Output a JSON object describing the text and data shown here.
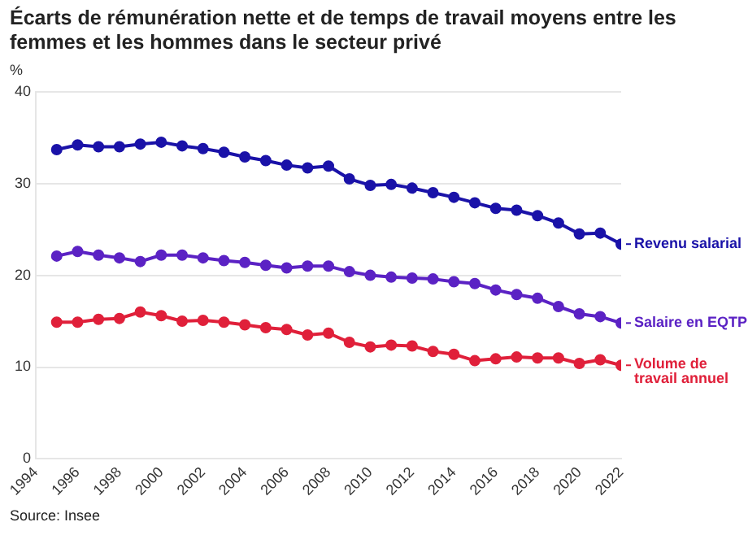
{
  "chart_data": {
    "type": "line",
    "title": "Écarts de rémunération nette et de temps de travail moyens entre les femmes et les hommes dans le secteur privé",
    "ylabel": "%",
    "x": [
      1995,
      1996,
      1997,
      1998,
      1999,
      2000,
      2001,
      2002,
      2003,
      2004,
      2005,
      2006,
      2007,
      2008,
      2009,
      2010,
      2011,
      2012,
      2013,
      2014,
      2015,
      2016,
      2017,
      2018,
      2019,
      2020,
      2021,
      2022
    ],
    "series": [
      {
        "name": "Revenu salarial",
        "color": "#1a12a8",
        "values": [
          33.7,
          34.2,
          34.0,
          34.0,
          34.3,
          34.5,
          34.1,
          33.8,
          33.4,
          32.9,
          32.5,
          32.0,
          31.7,
          31.9,
          30.5,
          29.8,
          29.9,
          29.5,
          29.0,
          28.5,
          27.9,
          27.3,
          27.1,
          26.5,
          25.7,
          24.5,
          24.6,
          23.4
        ]
      },
      {
        "name": "Salaire en EQTP",
        "color": "#5b22c4",
        "values": [
          22.1,
          22.6,
          22.2,
          21.9,
          21.5,
          22.2,
          22.2,
          21.9,
          21.6,
          21.4,
          21.1,
          20.8,
          21.0,
          21.0,
          20.4,
          20.0,
          19.8,
          19.7,
          19.6,
          19.3,
          19.1,
          18.4,
          17.9,
          17.5,
          16.6,
          15.8,
          15.5,
          14.8
        ]
      },
      {
        "name": "Volume de travail annuel",
        "color": "#e0203a",
        "values": [
          14.9,
          14.9,
          15.2,
          15.3,
          16.0,
          15.6,
          15.0,
          15.1,
          14.9,
          14.6,
          14.3,
          14.1,
          13.5,
          13.7,
          12.7,
          12.2,
          12.4,
          12.3,
          11.7,
          11.4,
          10.7,
          10.9,
          11.1,
          11.0,
          11.0,
          10.4,
          10.8,
          10.2
        ]
      }
    ],
    "xlim": [
      1994,
      2022
    ],
    "xticks": [
      1994,
      1996,
      1998,
      2000,
      2002,
      2004,
      2006,
      2008,
      2010,
      2012,
      2014,
      2016,
      2018,
      2020,
      2022
    ],
    "ylim": [
      0,
      40
    ],
    "yticks": [
      0,
      10,
      20,
      30,
      40
    ],
    "grid": "y",
    "marker": "circle",
    "line_style": "solid",
    "legend": "right",
    "annotations": [
      "Source: Insee"
    ]
  }
}
